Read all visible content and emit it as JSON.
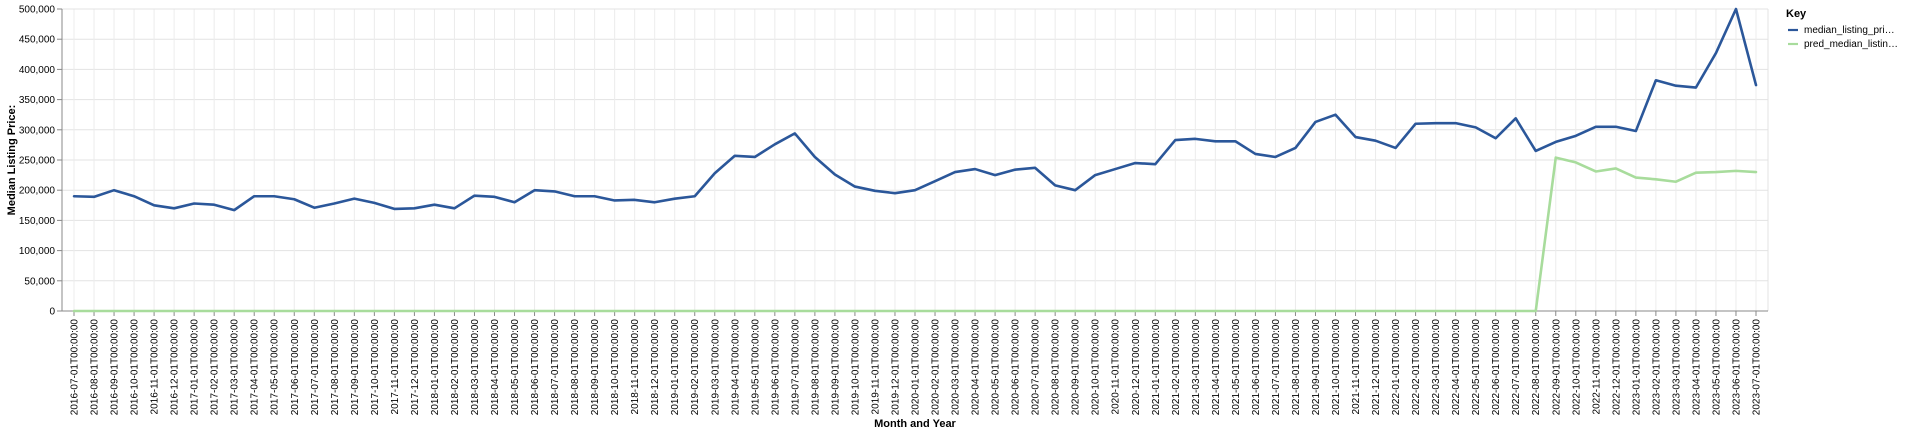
{
  "chart_data": {
    "type": "line",
    "xlabel": "Month and Year",
    "ylabel": "Median Listing Price:",
    "ylim": [
      0,
      500000
    ],
    "yticks": [
      0,
      50000,
      100000,
      150000,
      200000,
      250000,
      300000,
      350000,
      400000,
      450000,
      500000
    ],
    "ytick_labels": [
      "0",
      "50,000",
      "100,000",
      "150,000",
      "200,000",
      "250,000",
      "300,000",
      "350,000",
      "400,000",
      "450,000",
      "500,000"
    ],
    "grid": true,
    "legend": {
      "title": "Key",
      "placement": "top-right",
      "entries": [
        "median_listing_pri…",
        "pred_median_listin…"
      ]
    },
    "x": [
      "2016-07-01T00:00:00",
      "2016-08-01T00:00:00",
      "2016-09-01T00:00:00",
      "2016-10-01T00:00:00",
      "2016-11-01T00:00:00",
      "2016-12-01T00:00:00",
      "2017-01-01T00:00:00",
      "2017-02-01T00:00:00",
      "2017-03-01T00:00:00",
      "2017-04-01T00:00:00",
      "2017-05-01T00:00:00",
      "2017-06-01T00:00:00",
      "2017-07-01T00:00:00",
      "2017-08-01T00:00:00",
      "2017-09-01T00:00:00",
      "2017-10-01T00:00:00",
      "2017-11-01T00:00:00",
      "2017-12-01T00:00:00",
      "2018-01-01T00:00:00",
      "2018-02-01T00:00:00",
      "2018-03-01T00:00:00",
      "2018-04-01T00:00:00",
      "2018-05-01T00:00:00",
      "2018-06-01T00:00:00",
      "2018-07-01T00:00:00",
      "2018-08-01T00:00:00",
      "2018-09-01T00:00:00",
      "2018-10-01T00:00:00",
      "2018-11-01T00:00:00",
      "2018-12-01T00:00:00",
      "2019-01-01T00:00:00",
      "2019-02-01T00:00:00",
      "2019-03-01T00:00:00",
      "2019-04-01T00:00:00",
      "2019-05-01T00:00:00",
      "2019-06-01T00:00:00",
      "2019-07-01T00:00:00",
      "2019-08-01T00:00:00",
      "2019-09-01T00:00:00",
      "2019-10-01T00:00:00",
      "2019-11-01T00:00:00",
      "2019-12-01T00:00:00",
      "2020-01-01T00:00:00",
      "2020-02-01T00:00:00",
      "2020-03-01T00:00:00",
      "2020-04-01T00:00:00",
      "2020-05-01T00:00:00",
      "2020-06-01T00:00:00",
      "2020-07-01T00:00:00",
      "2020-08-01T00:00:00",
      "2020-09-01T00:00:00",
      "2020-10-01T00:00:00",
      "2020-11-01T00:00:00",
      "2020-12-01T00:00:00",
      "2021-01-01T00:00:00",
      "2021-02-01T00:00:00",
      "2021-03-01T00:00:00",
      "2021-04-01T00:00:00",
      "2021-05-01T00:00:00",
      "2021-06-01T00:00:00",
      "2021-07-01T00:00:00",
      "2021-08-01T00:00:00",
      "2021-09-01T00:00:00",
      "2021-10-01T00:00:00",
      "2021-11-01T00:00:00",
      "2021-12-01T00:00:00",
      "2022-01-01T00:00:00",
      "2022-02-01T00:00:00",
      "2022-03-01T00:00:00",
      "2022-04-01T00:00:00",
      "2022-05-01T00:00:00",
      "2022-06-01T00:00:00",
      "2022-07-01T00:00:00",
      "2022-08-01T00:00:00",
      "2022-09-01T00:00:00",
      "2022-10-01T00:00:00",
      "2022-11-01T00:00:00",
      "2022-12-01T00:00:00",
      "2023-01-01T00:00:00",
      "2023-02-01T00:00:00",
      "2023-03-01T00:00:00",
      "2023-04-01T00:00:00",
      "2023-05-01T00:00:00",
      "2023-06-01T00:00:00",
      "2023-07-01T00:00:00"
    ],
    "series": [
      {
        "name": "median_listing_pri…",
        "color": "#2b579a",
        "values": [
          190000,
          189000,
          200000,
          190000,
          175000,
          170000,
          178000,
          176000,
          167000,
          190000,
          190000,
          185000,
          171000,
          178000,
          186000,
          179000,
          169000,
          170000,
          176000,
          170000,
          191000,
          189000,
          180000,
          200000,
          198000,
          190000,
          190000,
          183000,
          184000,
          180000,
          186000,
          190000,
          228000,
          257000,
          255000,
          276000,
          294000,
          255000,
          226000,
          206000,
          199000,
          195000,
          200000,
          215000,
          230000,
          235000,
          225000,
          234000,
          237000,
          208000,
          200000,
          225000,
          235000,
          245000,
          243000,
          283000,
          285000,
          281000,
          281000,
          260000,
          255000,
          270000,
          313000,
          325000,
          288000,
          282000,
          270000,
          310000,
          311000,
          311000,
          304000,
          286000,
          319000,
          265000,
          280000,
          290000,
          305000,
          305000,
          298000,
          382000,
          373000,
          370000,
          427000,
          500000,
          374000
        ]
      },
      {
        "name": "pred_median_listin…",
        "color": "#a8dc9c",
        "values": [
          0,
          0,
          0,
          0,
          0,
          0,
          0,
          0,
          0,
          0,
          0,
          0,
          0,
          0,
          0,
          0,
          0,
          0,
          0,
          0,
          0,
          0,
          0,
          0,
          0,
          0,
          0,
          0,
          0,
          0,
          0,
          0,
          0,
          0,
          0,
          0,
          0,
          0,
          0,
          0,
          0,
          0,
          0,
          0,
          0,
          0,
          0,
          0,
          0,
          0,
          0,
          0,
          0,
          0,
          0,
          0,
          0,
          0,
          0,
          0,
          0,
          0,
          0,
          0,
          0,
          0,
          0,
          0,
          0,
          0,
          0,
          0,
          0,
          0,
          254000,
          246000,
          231000,
          236000,
          221000,
          218000,
          214000,
          229000,
          230000,
          232000,
          230000
        ]
      }
    ]
  }
}
